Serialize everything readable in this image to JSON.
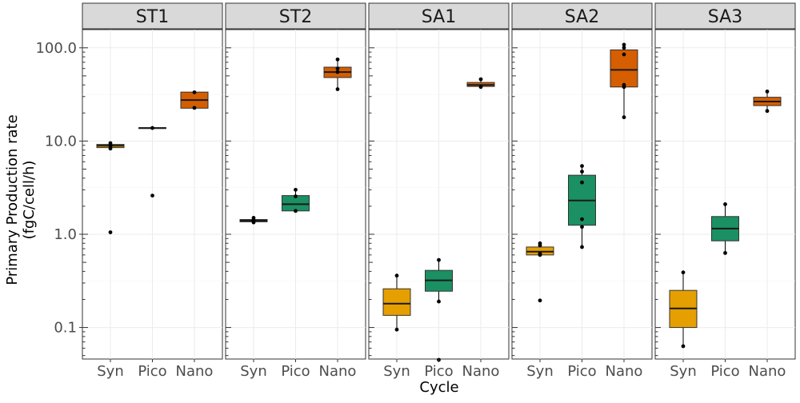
{
  "chart_data": {
    "type": "box",
    "xlabel": "Cycle",
    "ylabel_line1": "Primary Production rate",
    "ylabel_line2": "(fgC/cell/h)",
    "y_scale": "log10",
    "ylim": [
      0.045,
      160
    ],
    "y_ticks": [
      0.1,
      1.0,
      10.0,
      100.0
    ],
    "y_tick_labels": [
      "0.1",
      "1.0",
      "10.0",
      "100.0"
    ],
    "categories": [
      "Syn",
      "Pico",
      "Nano"
    ],
    "colors": {
      "Syn": "#E69F00",
      "Pico": "#1A9063",
      "Nano": "#D55E00"
    },
    "grid": true,
    "panels": [
      {
        "name": "ST1",
        "groups": [
          {
            "category": "Syn",
            "q1": 8.5,
            "median": 8.9,
            "q3": 9.2,
            "whisker_low": 8.2,
            "whisker_high": 9.6,
            "points": [
              1.05,
              8.3,
              8.8,
              9.1,
              9.5
            ]
          },
          {
            "category": "Pico",
            "q1": 13.7,
            "median": 13.8,
            "q3": 13.9,
            "whisker_low": 13.6,
            "whisker_high": 13.9,
            "points": [
              2.6,
              13.8
            ]
          },
          {
            "category": "Nano",
            "q1": 22.5,
            "median": 27.5,
            "q3": 33.5,
            "whisker_low": 22.5,
            "whisker_high": 33.5,
            "points": [
              22.7,
              33.3
            ]
          }
        ]
      },
      {
        "name": "ST2",
        "groups": [
          {
            "category": "Syn",
            "q1": 1.36,
            "median": 1.4,
            "q3": 1.44,
            "whisker_low": 1.33,
            "whisker_high": 1.5,
            "points": [
              1.34,
              1.38,
              1.42,
              1.5
            ]
          },
          {
            "category": "Pico",
            "q1": 1.78,
            "median": 2.1,
            "q3": 2.6,
            "whisker_low": 1.75,
            "whisker_high": 3.0,
            "points": [
              1.78,
              2.55,
              3.0
            ]
          },
          {
            "category": "Nano",
            "q1": 48.0,
            "median": 55.0,
            "q3": 62.0,
            "whisker_low": 36.0,
            "whisker_high": 75.0,
            "points": [
              36.0,
              55.0,
              60.0,
              75.0
            ]
          }
        ]
      },
      {
        "name": "SA1",
        "groups": [
          {
            "category": "Syn",
            "q1": 0.135,
            "median": 0.18,
            "q3": 0.26,
            "whisker_low": 0.095,
            "whisker_high": 0.36,
            "points": [
              0.095,
              0.36
            ]
          },
          {
            "category": "Pico",
            "q1": 0.245,
            "median": 0.32,
            "q3": 0.41,
            "whisker_low": 0.19,
            "whisker_high": 0.53,
            "points": [
              0.045,
              0.19,
              0.53
            ]
          },
          {
            "category": "Nano",
            "q1": 38.5,
            "median": 40.0,
            "q3": 42.5,
            "whisker_low": 38.0,
            "whisker_high": 46.0,
            "points": [
              38.0,
              46.0
            ]
          }
        ]
      },
      {
        "name": "SA2",
        "groups": [
          {
            "category": "Syn",
            "q1": 0.6,
            "median": 0.65,
            "q3": 0.73,
            "whisker_low": 0.6,
            "whisker_high": 0.8,
            "points": [
              0.195,
              0.6,
              0.62,
              0.76,
              0.8
            ]
          },
          {
            "category": "Pico",
            "q1": 1.25,
            "median": 2.3,
            "q3": 4.3,
            "whisker_low": 0.73,
            "whisker_high": 5.4,
            "points": [
              0.73,
              1.2,
              1.45,
              3.6,
              4.7,
              5.4
            ]
          },
          {
            "category": "Nano",
            "q1": 38.0,
            "median": 58.0,
            "q3": 95.0,
            "whisker_low": 18.0,
            "whisker_high": 108.0,
            "points": [
              18.0,
              38.0,
              40.0,
              85.0,
              100.0,
              108.0
            ]
          }
        ]
      },
      {
        "name": "SA3",
        "groups": [
          {
            "category": "Syn",
            "q1": 0.1,
            "median": 0.16,
            "q3": 0.25,
            "whisker_low": 0.063,
            "whisker_high": 0.39,
            "points": [
              0.063,
              0.39
            ]
          },
          {
            "category": "Pico",
            "q1": 0.85,
            "median": 1.15,
            "q3": 1.55,
            "whisker_low": 0.63,
            "whisker_high": 2.1,
            "points": [
              0.63,
              2.1
            ]
          },
          {
            "category": "Nano",
            "q1": 24.0,
            "median": 26.5,
            "q3": 29.5,
            "whisker_low": 21.0,
            "whisker_high": 34.0,
            "points": [
              21.0,
              34.0
            ]
          }
        ]
      }
    ]
  }
}
